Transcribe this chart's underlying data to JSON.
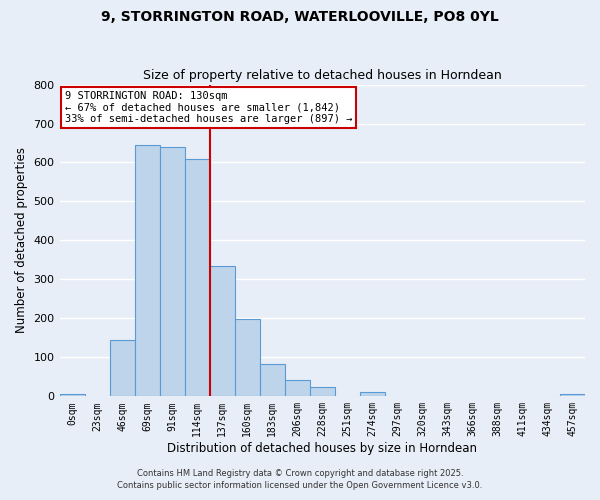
{
  "title": "9, STORRINGTON ROAD, WATERLOOVILLE, PO8 0YL",
  "subtitle": "Size of property relative to detached houses in Horndean",
  "xlabel": "Distribution of detached houses by size in Horndean",
  "ylabel": "Number of detached properties",
  "bar_labels": [
    "0sqm",
    "23sqm",
    "46sqm",
    "69sqm",
    "91sqm",
    "114sqm",
    "137sqm",
    "160sqm",
    "183sqm",
    "206sqm",
    "228sqm",
    "251sqm",
    "274sqm",
    "297sqm",
    "320sqm",
    "343sqm",
    "366sqm",
    "388sqm",
    "411sqm",
    "434sqm",
    "457sqm"
  ],
  "bar_heights": [
    5,
    0,
    145,
    645,
    640,
    610,
    335,
    198,
    82,
    42,
    25,
    0,
    12,
    0,
    0,
    0,
    0,
    0,
    0,
    0,
    5
  ],
  "bar_color": "#bdd4eb",
  "bar_edge_color": "#5b9bd5",
  "vline_color": "#cc0000",
  "vline_xindex": 6,
  "ylim": [
    0,
    800
  ],
  "yticks": [
    0,
    100,
    200,
    300,
    400,
    500,
    600,
    700,
    800
  ],
  "annotation_text": "9 STORRINGTON ROAD: 130sqm\n← 67% of detached houses are smaller (1,842)\n33% of semi-detached houses are larger (897) →",
  "annotation_box_color": "#ffffff",
  "annotation_box_edgecolor": "#cc0000",
  "footer1": "Contains HM Land Registry data © Crown copyright and database right 2025.",
  "footer2": "Contains public sector information licensed under the Open Government Licence v3.0.",
  "bg_color": "#e8eef7",
  "plot_bg_color": "#e8eef7",
  "grid_color": "#ffffff"
}
